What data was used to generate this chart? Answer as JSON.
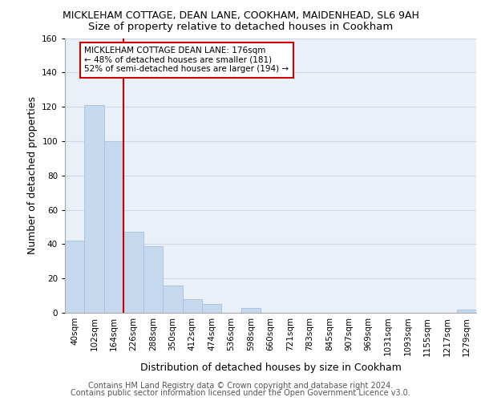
{
  "title_line1": "MICKLEHAM COTTAGE, DEAN LANE, COOKHAM, MAIDENHEAD, SL6 9AH",
  "title_line2": "Size of property relative to detached houses in Cookham",
  "xlabel": "Distribution of detached houses by size in Cookham",
  "ylabel": "Number of detached properties",
  "categories": [
    "40sqm",
    "102sqm",
    "164sqm",
    "226sqm",
    "288sqm",
    "350sqm",
    "412sqm",
    "474sqm",
    "536sqm",
    "598sqm",
    "660sqm",
    "721sqm",
    "783sqm",
    "845sqm",
    "907sqm",
    "969sqm",
    "1031sqm",
    "1093sqm",
    "1155sqm",
    "1217sqm",
    "1279sqm"
  ],
  "values": [
    42,
    121,
    100,
    47,
    39,
    16,
    8,
    5,
    0,
    3,
    0,
    0,
    0,
    0,
    0,
    0,
    0,
    0,
    0,
    0,
    2
  ],
  "bar_color": "#c5d8ee",
  "bar_edgecolor": "#a8c0dc",
  "grid_color": "#d0d8e8",
  "background_color": "#eaf0f8",
  "vline_color": "#cc0000",
  "annotation_text": "MICKLEHAM COTTAGE DEAN LANE: 176sqm\n← 48% of detached houses are smaller (181)\n52% of semi-detached houses are larger (194) →",
  "annotation_box_color": "#cc0000",
  "ylim": [
    0,
    160
  ],
  "yticks": [
    0,
    20,
    40,
    60,
    80,
    100,
    120,
    140,
    160
  ],
  "footer_line1": "Contains HM Land Registry data © Crown copyright and database right 2024.",
  "footer_line2": "Contains public sector information licensed under the Open Government Licence v3.0.",
  "title_fontsize": 9,
  "subtitle_fontsize": 9.5,
  "axis_label_fontsize": 9,
  "tick_fontsize": 7.5,
  "footer_fontsize": 7
}
